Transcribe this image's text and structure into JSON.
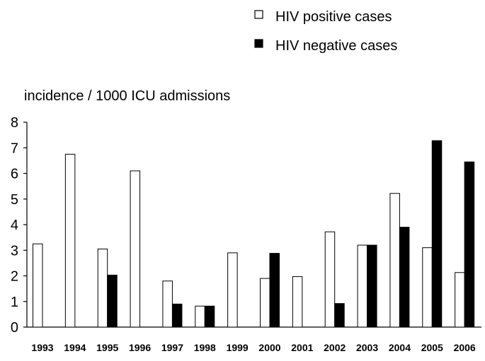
{
  "chart_data": {
    "type": "bar",
    "title": "",
    "xlabel": "",
    "ylabel": "incidence / 1000 ICU admissions",
    "ylim": [
      0,
      8
    ],
    "yticks": [
      0,
      1,
      2,
      3,
      4,
      5,
      6,
      7,
      8
    ],
    "grid": false,
    "legend_position": "top-right",
    "categories": [
      "1993",
      "1994",
      "1995",
      "1996",
      "1997",
      "1998",
      "1999",
      "2000",
      "2001",
      "2002",
      "2003",
      "2004",
      "2005",
      "2006"
    ],
    "series": [
      {
        "name": "HIV positive cases",
        "fill": "#ffffff",
        "values": [
          3.25,
          6.75,
          3.05,
          6.1,
          1.8,
          0.82,
          2.9,
          1.9,
          1.97,
          3.72,
          3.2,
          5.22,
          3.1,
          2.13
        ]
      },
      {
        "name": "HIV negative cases",
        "fill": "#000000",
        "values": [
          0,
          0,
          2.03,
          0,
          0.9,
          0.82,
          0,
          2.88,
          0,
          0.92,
          3.2,
          3.9,
          7.28,
          6.45
        ]
      }
    ]
  }
}
